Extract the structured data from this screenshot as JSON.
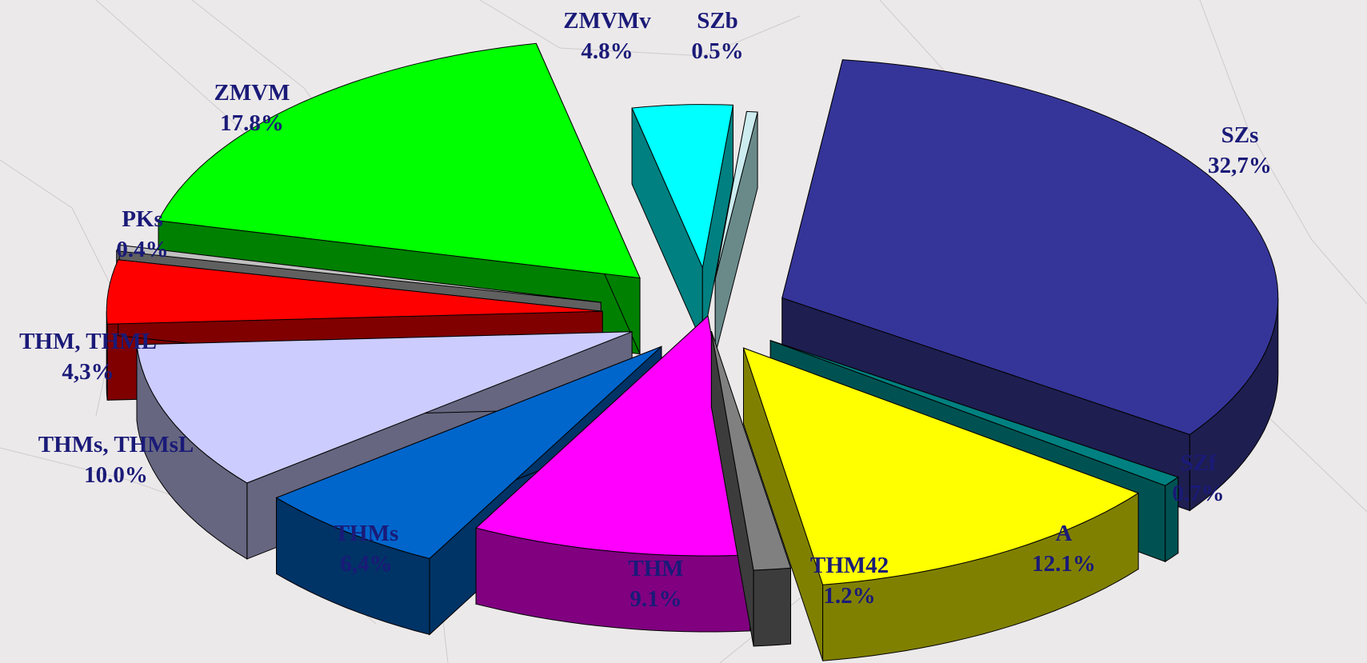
{
  "chart_data": {
    "type": "pie",
    "style": "3d-exploded",
    "slices": [
      {
        "label": "SZs",
        "value_text": "32,7%",
        "value": 32.7,
        "top_color": "#353599",
        "side_color": "#1e1e50"
      },
      {
        "label": "SZf",
        "value_text": "0.7%",
        "value": 0.7,
        "top_color": "#008080",
        "side_color": "#005252"
      },
      {
        "label": "A",
        "value_text": "12.1%",
        "value": 12.1,
        "top_color": "#ffff00",
        "side_color": "#808000"
      },
      {
        "label": "THM42",
        "value_text": "1.2%",
        "value": 1.2,
        "top_color": "#808080",
        "side_color": "#3c3c3c"
      },
      {
        "label": "THM",
        "value_text": "9.1%",
        "value": 9.1,
        "top_color": "#ff00ff",
        "side_color": "#800080"
      },
      {
        "label": "THMs",
        "value_text": "6,4%",
        "value": 6.4,
        "top_color": "#0066cc",
        "side_color": "#003366"
      },
      {
        "label": "THMs, THMsL",
        "value_text": "10.0%",
        "value": 10.0,
        "top_color": "#ccccff",
        "side_color": "#666680"
      },
      {
        "label": "THM, THML",
        "value_text": "4,3%",
        "value": 4.3,
        "top_color": "#ff0000",
        "side_color": "#800000"
      },
      {
        "label": "PKs",
        "value_text": "0.4%",
        "value": 0.4,
        "top_color": "#c0c0c0",
        "side_color": "#606060"
      },
      {
        "label": "ZMVM",
        "value_text": "17.8%",
        "value": 17.8,
        "top_color": "#00ff00",
        "side_color": "#008000"
      },
      {
        "label": "ZMVMv",
        "value_text": "4.8%",
        "value": 4.8,
        "top_color": "#00ffff",
        "side_color": "#008080"
      },
      {
        "label": "SZb",
        "value_text": "0.5%",
        "value": 0.5,
        "top_color": "#ccecf0",
        "side_color": "#6a8a8a"
      }
    ],
    "label_color": "#1a1a78",
    "background_color": "#ece9ea"
  }
}
